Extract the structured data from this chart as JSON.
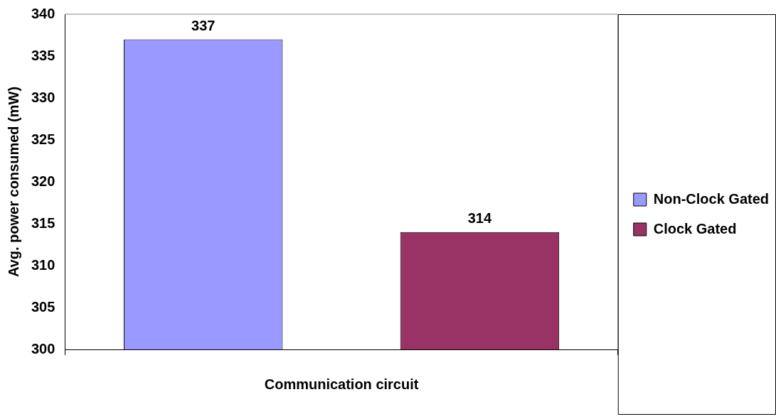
{
  "chart_data": {
    "type": "bar",
    "ylabel": "Avg. power consumed (mW)",
    "categories": [
      "Communication circuit"
    ],
    "series": [
      {
        "name": "Non-Clock Gated",
        "color": "#9999ff",
        "values": [
          337
        ]
      },
      {
        "name": "Clock Gated",
        "color": "#993366",
        "values": [
          314
        ]
      }
    ],
    "ylim": [
      300,
      340
    ],
    "yticks": [
      300,
      305,
      310,
      315,
      320,
      325,
      330,
      335,
      340
    ],
    "grid": false,
    "legend": "right",
    "data_labels": true
  }
}
